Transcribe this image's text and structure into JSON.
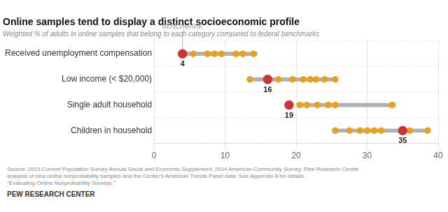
{
  "chart_data": {
    "type": "dot",
    "title": "Online samples tend to display a distinct socioeconomic profile",
    "subtitle": "Weighted % of adults in online samples that belong to each category compared to federal benchmarks",
    "source": "Source: 2015 Current Population Survey Annual Social and Economic Supplement; 2014 American Community Survey; Pew Research Center\nanalysis of nine online nonprobability samples and the Center’s American Trends Panel data. See Appendix A for details.\n“Evaluating Online Nonprobability Surveys.”",
    "brand": "PEW RESEARCH CENTER",
    "orientation": "horizontal",
    "categories": [
      "Received unemployment compensation",
      "Low income (< $20,000)",
      "Single adult household",
      "Children in household"
    ],
    "series": [
      {
        "type": "bar",
        "color": "#b0b0b0",
        "values": [
          [
            4,
            14.5
          ],
          [
            13.5,
            25.5
          ],
          [
            20.5,
            34.0
          ],
          [
            25.5,
            38.5
          ]
        ]
      },
      {
        "type": "scatter",
        "color": "#e8a020",
        "values": [
          [
            5.5,
            7.5,
            8.5,
            9.5,
            11.5,
            12.5,
            14.0
          ],
          [
            13.5,
            17.5,
            19.5,
            21.0,
            22.0,
            22.8,
            24.0,
            25.5
          ],
          [
            20.5,
            21.5,
            23.0,
            24.5,
            25.5,
            33.5
          ],
          [
            25.5,
            27.5,
            29.0,
            30.0,
            31.0,
            32.0,
            36.0,
            38.5
          ]
        ]
      },
      {
        "name": "BENCHMARK",
        "type": "scatter",
        "color": "#cc3333",
        "values": [
          4,
          16,
          19,
          35
        ],
        "data_labels": true
      }
    ],
    "xlim": [
      0,
      40
    ],
    "xticks": [
      0,
      10,
      20,
      30,
      40
    ],
    "grid": true
  }
}
